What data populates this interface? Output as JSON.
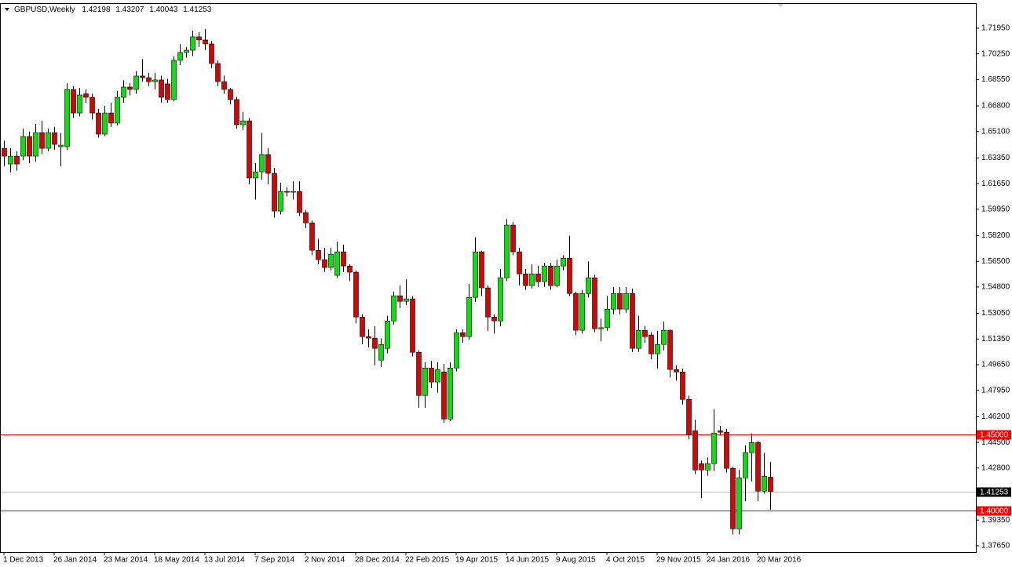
{
  "chart_data": {
    "type": "candlestick",
    "symbol": "GBPUSD,Weekly",
    "categories": [
      "1 Dec 2013",
      null,
      null,
      null,
      null,
      null,
      null,
      null,
      "26 Jan 2014",
      null,
      null,
      null,
      null,
      null,
      null,
      null,
      "23 Mar 2014",
      null,
      null,
      null,
      null,
      null,
      null,
      null,
      "18 May 2014",
      null,
      null,
      null,
      null,
      null,
      null,
      null,
      "13 Jul 2014",
      null,
      null,
      null,
      null,
      null,
      null,
      null,
      "7 Sep 2014",
      null,
      null,
      null,
      null,
      null,
      null,
      null,
      "2 Nov 2014",
      null,
      null,
      null,
      null,
      null,
      null,
      null,
      "28 Dec 2014",
      null,
      null,
      null,
      null,
      null,
      null,
      null,
      "22 Feb 2015",
      null,
      null,
      null,
      null,
      null,
      null,
      null,
      "19 Apr 2015",
      null,
      null,
      null,
      null,
      null,
      null,
      null,
      "14 Jun 2015",
      null,
      null,
      null,
      null,
      null,
      null,
      null,
      "9 Aug 2015",
      null,
      null,
      null,
      null,
      null,
      null,
      null,
      "4 Oct 2015",
      null,
      null,
      null,
      null,
      null,
      null,
      null,
      "29 Nov 2015",
      null,
      null,
      null,
      null,
      null,
      null,
      null,
      "24 Jan 2016",
      null,
      null,
      null,
      null,
      null,
      null,
      null,
      "20 Mar 2016",
      null,
      null
    ],
    "open": [
      1.6399,
      1.6295,
      1.6347,
      1.6347,
      1.6477,
      1.6347,
      1.6503,
      1.6399,
      1.6503,
      1.641,
      1.641,
      1.6789,
      1.6633,
      1.676,
      1.6737,
      1.6633,
      1.6493,
      1.6633,
      1.6566,
      1.6737,
      1.6805,
      1.6789,
      1.6878,
      1.6867,
      1.6841,
      1.6852,
      1.6826,
      1.6722,
      1.6982,
      1.7034,
      1.7049,
      1.7138,
      1.7117,
      1.7091,
      1.6961,
      1.6841,
      1.6789,
      1.6722,
      1.6555,
      1.6581,
      1.6202,
      1.6243,
      1.6358,
      1.6233,
      1.5983,
      1.6113,
      1.611,
      1.6113,
      1.5973,
      1.5905,
      1.5723,
      1.5661,
      1.5609,
      1.5557,
      1.5713,
      1.5619,
      1.5578,
      1.5281,
      1.5151,
      1.5141,
      1.4995,
      1.5073,
      1.5255,
      1.5422,
      1.5385,
      1.5401,
      1.5047,
      1.4761,
      1.4943,
      1.485,
      1.4917,
      1.4605,
      1.4943,
      1.5177,
      1.5151,
      1.5411,
      1.5713,
      1.5474,
      1.5281,
      1.5255,
      1.5541,
      1.589,
      1.5713,
      1.5567,
      1.5489,
      1.5567,
      1.5515,
      1.5619,
      1.5489,
      1.5619,
      1.5671,
      1.5437,
      1.5193,
      1.5437,
      1.5541,
      1.5203,
      1.521,
      1.5333,
      1.5437,
      1.5333,
      1.5437,
      1.5073,
      1.5193,
      1.5162,
      1.5037,
      1.5099,
      1.5193,
      1.4933,
      1.4917,
      1.4735,
      1.4527,
      1.4309,
      1.4267,
      1.4309,
      1.4527,
      1.4517,
      1.4278,
      1.3877,
      1.4215,
      1.4382,
      1.4449,
      1.4127,
      1.42198
    ],
    "high": [
      1.645,
      1.64,
      1.638,
      1.653,
      1.651,
      1.656,
      1.658,
      1.653,
      1.654,
      1.65,
      1.683,
      1.681,
      1.68,
      1.679,
      1.676,
      1.666,
      1.668,
      1.67,
      1.678,
      1.685,
      1.683,
      1.691,
      1.699,
      1.69,
      1.69,
      1.688,
      1.686,
      1.701,
      1.709,
      1.707,
      1.718,
      1.717,
      1.719,
      1.711,
      1.698,
      1.688,
      1.68,
      1.674,
      1.664,
      1.66,
      1.63,
      1.65,
      1.64,
      1.627,
      1.617,
      1.614,
      1.618,
      1.618,
      1.599,
      1.592,
      1.58,
      1.574,
      1.574,
      1.578,
      1.576,
      1.563,
      1.559,
      1.53,
      1.52,
      1.522,
      1.514,
      1.529,
      1.545,
      1.549,
      1.553,
      1.542,
      1.506,
      1.498,
      1.499,
      1.498,
      1.497,
      1.498,
      1.52,
      1.52,
      1.55,
      1.581,
      1.572,
      1.549,
      1.53,
      1.56,
      1.593,
      1.591,
      1.574,
      1.56,
      1.563,
      1.562,
      1.564,
      1.564,
      1.566,
      1.569,
      1.582,
      1.545,
      1.546,
      1.565,
      1.556,
      1.527,
      1.542,
      1.548,
      1.548,
      1.548,
      1.547,
      1.529,
      1.522,
      1.518,
      1.519,
      1.525,
      1.52,
      1.496,
      1.494,
      1.476,
      1.46,
      1.433,
      1.435,
      1.467,
      1.456,
      1.454,
      1.429,
      1.427,
      1.443,
      1.451,
      1.446,
      1.438,
      1.43207
    ],
    "low": [
      1.628,
      1.624,
      1.625,
      1.632,
      1.63,
      1.631,
      1.636,
      1.638,
      1.639,
      1.628,
      1.639,
      1.66,
      1.661,
      1.67,
      1.659,
      1.647,
      1.648,
      1.654,
      1.655,
      1.67,
      1.675,
      1.676,
      1.684,
      1.681,
      1.679,
      1.67,
      1.67,
      1.671,
      1.695,
      1.7,
      1.701,
      1.707,
      1.705,
      1.693,
      1.681,
      1.676,
      1.669,
      1.653,
      1.652,
      1.616,
      1.606,
      1.619,
      1.616,
      1.594,
      1.596,
      1.608,
      1.606,
      1.595,
      1.587,
      1.569,
      1.563,
      1.558,
      1.559,
      1.554,
      1.558,
      1.552,
      1.524,
      1.51,
      1.508,
      1.496,
      1.495,
      1.504,
      1.523,
      1.534,
      1.536,
      1.502,
      1.468,
      1.468,
      1.481,
      1.478,
      1.458,
      1.459,
      1.492,
      1.511,
      1.513,
      1.538,
      1.542,
      1.519,
      1.517,
      1.522,
      1.552,
      1.569,
      1.549,
      1.546,
      1.547,
      1.548,
      1.548,
      1.546,
      1.548,
      1.559,
      1.542,
      1.516,
      1.517,
      1.541,
      1.518,
      1.512,
      1.519,
      1.53,
      1.53,
      1.531,
      1.505,
      1.505,
      1.511,
      1.5,
      1.494,
      1.506,
      1.488,
      1.486,
      1.47,
      1.447,
      1.424,
      1.408,
      1.423,
      1.426,
      1.45,
      1.425,
      1.384,
      1.384,
      1.406,
      1.419,
      1.406,
      1.411,
      1.40043
    ],
    "close": [
      1.6347,
      1.6347,
      1.6295,
      1.6477,
      1.6347,
      1.6503,
      1.6399,
      1.6503,
      1.6425,
      1.642,
      1.6789,
      1.6633,
      1.6753,
      1.6737,
      1.6633,
      1.6493,
      1.6633,
      1.6566,
      1.6737,
      1.6805,
      1.6789,
      1.6878,
      1.6867,
      1.6841,
      1.6852,
      1.6737,
      1.6722,
      1.6982,
      1.7034,
      1.7049,
      1.7138,
      1.7117,
      1.7091,
      1.6961,
      1.6841,
      1.6789,
      1.6722,
      1.6555,
      1.6581,
      1.6202,
      1.6243,
      1.6358,
      1.6233,
      1.5983,
      1.6113,
      1.611,
      1.6113,
      1.5973,
      1.5905,
      1.5723,
      1.5661,
      1.5609,
      1.5697,
      1.5713,
      1.5619,
      1.5578,
      1.5281,
      1.5151,
      1.5141,
      1.5073,
      1.5099,
      1.5255,
      1.5422,
      1.5385,
      1.5401,
      1.5047,
      1.4761,
      1.4943,
      1.485,
      1.4933,
      1.4605,
      1.4943,
      1.5177,
      1.5151,
      1.5411,
      1.5713,
      1.5474,
      1.5281,
      1.5255,
      1.5541,
      1.589,
      1.5713,
      1.5567,
      1.5489,
      1.5567,
      1.5515,
      1.5619,
      1.5489,
      1.5619,
      1.5671,
      1.5437,
      1.5193,
      1.5437,
      1.5541,
      1.5203,
      1.521,
      1.5333,
      1.5437,
      1.5333,
      1.5437,
      1.5073,
      1.5193,
      1.5151,
      1.5037,
      1.5099,
      1.5193,
      1.4933,
      1.4917,
      1.4735,
      1.4501,
      1.4267,
      1.4267,
      1.4309,
      1.4512,
      1.4517,
      1.4278,
      1.3877,
      1.4215,
      1.4382,
      1.4449,
      1.4127,
      1.4226,
      1.41253
    ],
    "up_color": "#00e600",
    "down_color": "#e00000",
    "hlines": [
      {
        "value": 1.45,
        "label": "1.45000",
        "color": "#ff0000"
      },
      {
        "value": 1.4,
        "label": "1.40000",
        "color": "#ff0000"
      }
    ],
    "price_line_color": "#c0c0c0",
    "ylim": [
      1.3723,
      1.7361
    ],
    "yticks": [
      {
        "value": 1.7195,
        "label": "1.71950"
      },
      {
        "value": 1.7025,
        "label": "1.70250"
      },
      {
        "value": 1.6855,
        "label": "1.68550"
      },
      {
        "value": 1.668,
        "label": "1.66800"
      },
      {
        "value": 1.651,
        "label": "1.65100"
      },
      {
        "value": 1.6335,
        "label": "1.63350"
      },
      {
        "value": 1.6165,
        "label": "1.61650"
      },
      {
        "value": 1.5995,
        "label": "1.59950"
      },
      {
        "value": 1.582,
        "label": "1.58200"
      },
      {
        "value": 1.565,
        "label": "1.56500"
      },
      {
        "value": 1.548,
        "label": "1.54800"
      },
      {
        "value": 1.5305,
        "label": "1.53050"
      },
      {
        "value": 1.5135,
        "label": "1.51350"
      },
      {
        "value": 1.4965,
        "label": "1.49650"
      },
      {
        "value": 1.4795,
        "label": "1.47950"
      },
      {
        "value": 1.462,
        "label": "1.46200"
      },
      {
        "value": 1.445,
        "label": "1.44500"
      },
      {
        "value": 1.428,
        "label": "1.42800"
      },
      {
        "value": 1.3935,
        "label": "1.39350"
      },
      {
        "value": 1.3765,
        "label": "1.37650"
      }
    ]
  }
}
